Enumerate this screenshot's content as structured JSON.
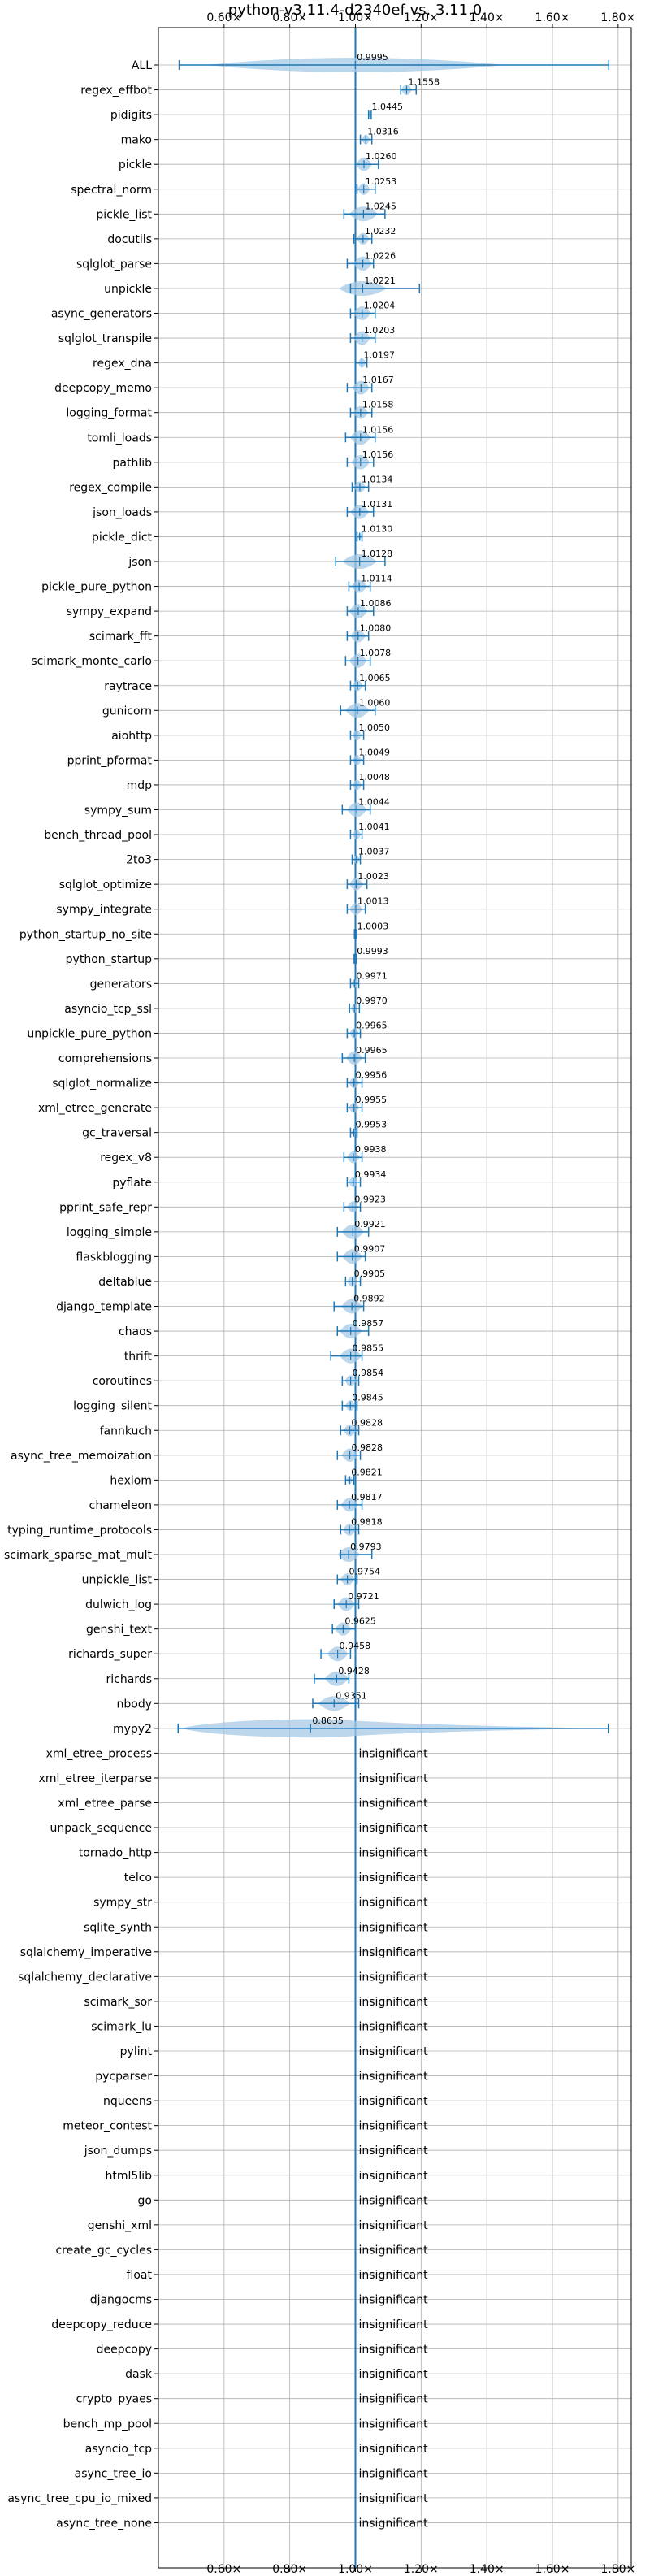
{
  "chart_data": {
    "type": "violin",
    "title": "python-v3.11.4-d2340ef vs. 3.11.0",
    "xlim": [
      0.4,
      1.84
    ],
    "x_ticks": [
      0.6,
      0.8,
      1.0,
      1.2,
      1.4,
      1.6,
      1.8
    ],
    "x_tick_labels": [
      "0.60×",
      "0.80×",
      "1.00×",
      "1.20×",
      "1.40×",
      "1.60×",
      "1.80×"
    ],
    "x_ticks_top": true,
    "grid": true,
    "reference_line": 1.0,
    "colors": {
      "accent": "#1f77b4",
      "violin": "#a6c8e4",
      "grid": "#b0b0b0"
    },
    "insignificant_label": "insignificant",
    "benchmarks": [
      {
        "name": "ALL",
        "value": 0.9995,
        "label": "0.9995",
        "min": 0.4632,
        "max": 1.7714
      },
      {
        "name": "regex_effbot",
        "value": 1.1558,
        "label": "1.1558",
        "min": 1.138,
        "max": 1.185
      },
      {
        "name": "pidigits",
        "value": 1.0445,
        "label": "1.0445",
        "min": 1.04,
        "max": 1.048
      },
      {
        "name": "mako",
        "value": 1.0316,
        "label": "1.0316",
        "min": 1.015,
        "max": 1.05
      },
      {
        "name": "pickle",
        "value": 1.026,
        "label": "1.0260",
        "min": 1.0,
        "max": 1.07
      },
      {
        "name": "spectral_norm",
        "value": 1.0253,
        "label": "1.0253",
        "min": 1.005,
        "max": 1.06
      },
      {
        "name": "pickle_list",
        "value": 1.0245,
        "label": "1.0245",
        "min": 0.965,
        "max": 1.09
      },
      {
        "name": "docutils",
        "value": 1.0232,
        "label": "1.0232",
        "min": 0.995,
        "max": 1.05
      },
      {
        "name": "sqlglot_parse",
        "value": 1.0226,
        "label": "1.0226",
        "min": 0.975,
        "max": 1.055
      },
      {
        "name": "unpickle",
        "value": 1.0221,
        "label": "1.0221",
        "min": 0.985,
        "max": 1.195
      },
      {
        "name": "async_generators",
        "value": 1.0204,
        "label": "1.0204",
        "min": 0.985,
        "max": 1.06
      },
      {
        "name": "sqlglot_transpile",
        "value": 1.0203,
        "label": "1.0203",
        "min": 0.985,
        "max": 1.06
      },
      {
        "name": "regex_dna",
        "value": 1.0197,
        "label": "1.0197",
        "min": 1.0,
        "max": 1.035
      },
      {
        "name": "deepcopy_memo",
        "value": 1.0167,
        "label": "1.0167",
        "min": 0.975,
        "max": 1.05
      },
      {
        "name": "logging_format",
        "value": 1.0158,
        "label": "1.0158",
        "min": 0.985,
        "max": 1.05
      },
      {
        "name": "tomli_loads",
        "value": 1.0156,
        "label": "1.0156",
        "min": 0.97,
        "max": 1.06
      },
      {
        "name": "pathlib",
        "value": 1.0156,
        "label": "1.0156",
        "min": 0.975,
        "max": 1.055
      },
      {
        "name": "regex_compile",
        "value": 1.0134,
        "label": "1.0134",
        "min": 0.99,
        "max": 1.04
      },
      {
        "name": "json_loads",
        "value": 1.0131,
        "label": "1.0131",
        "min": 0.975,
        "max": 1.055
      },
      {
        "name": "pickle_dict",
        "value": 1.013,
        "label": "1.0130",
        "min": 1.005,
        "max": 1.02
      },
      {
        "name": "json",
        "value": 1.0128,
        "label": "1.0128",
        "min": 0.94,
        "max": 1.09
      },
      {
        "name": "pickle_pure_python",
        "value": 1.0114,
        "label": "1.0114",
        "min": 0.98,
        "max": 1.045
      },
      {
        "name": "sympy_expand",
        "value": 1.0086,
        "label": "1.0086",
        "min": 0.975,
        "max": 1.055
      },
      {
        "name": "scimark_fft",
        "value": 1.008,
        "label": "1.0080",
        "min": 0.975,
        "max": 1.04
      },
      {
        "name": "scimark_monte_carlo",
        "value": 1.0078,
        "label": "1.0078",
        "min": 0.97,
        "max": 1.045
      },
      {
        "name": "raytrace",
        "value": 1.0065,
        "label": "1.0065",
        "min": 0.985,
        "max": 1.03
      },
      {
        "name": "gunicorn",
        "value": 1.006,
        "label": "1.0060",
        "min": 0.955,
        "max": 1.06
      },
      {
        "name": "aiohttp",
        "value": 1.005,
        "label": "1.0050",
        "min": 0.985,
        "max": 1.025
      },
      {
        "name": "pprint_pformat",
        "value": 1.0049,
        "label": "1.0049",
        "min": 0.985,
        "max": 1.025
      },
      {
        "name": "mdp",
        "value": 1.0048,
        "label": "1.0048",
        "min": 0.985,
        "max": 1.025
      },
      {
        "name": "sympy_sum",
        "value": 1.0044,
        "label": "1.0044",
        "min": 0.96,
        "max": 1.045
      },
      {
        "name": "bench_thread_pool",
        "value": 1.0041,
        "label": "1.0041",
        "min": 0.985,
        "max": 1.02
      },
      {
        "name": "2to3",
        "value": 1.0037,
        "label": "1.0037",
        "min": 0.99,
        "max": 1.015
      },
      {
        "name": "sqlglot_optimize",
        "value": 1.0023,
        "label": "1.0023",
        "min": 0.975,
        "max": 1.035
      },
      {
        "name": "sympy_integrate",
        "value": 1.0013,
        "label": "1.0013",
        "min": 0.975,
        "max": 1.03
      },
      {
        "name": "python_startup_no_site",
        "value": 1.0003,
        "label": "1.0003",
        "min": 0.997,
        "max": 1.004
      },
      {
        "name": "python_startup",
        "value": 0.9993,
        "label": "0.9993",
        "min": 0.996,
        "max": 1.003
      },
      {
        "name": "generators",
        "value": 0.9971,
        "label": "0.9971",
        "min": 0.985,
        "max": 1.01
      },
      {
        "name": "asyncio_tcp_ssl",
        "value": 0.997,
        "label": "0.9970",
        "min": 0.982,
        "max": 1.012
      },
      {
        "name": "unpickle_pure_python",
        "value": 0.9965,
        "label": "0.9965",
        "min": 0.975,
        "max": 1.015
      },
      {
        "name": "comprehensions",
        "value": 0.9965,
        "label": "0.9965",
        "min": 0.96,
        "max": 1.03
      },
      {
        "name": "sqlglot_normalize",
        "value": 0.9956,
        "label": "0.9956",
        "min": 0.975,
        "max": 1.02
      },
      {
        "name": "xml_etree_generate",
        "value": 0.9955,
        "label": "0.9955",
        "min": 0.975,
        "max": 1.02
      },
      {
        "name": "gc_traversal",
        "value": 0.9953,
        "label": "0.9953",
        "min": 0.985,
        "max": 1.005
      },
      {
        "name": "regex_v8",
        "value": 0.9938,
        "label": "0.9938",
        "min": 0.965,
        "max": 1.02
      },
      {
        "name": "pyflate",
        "value": 0.9934,
        "label": "0.9934",
        "min": 0.975,
        "max": 1.015
      },
      {
        "name": "pprint_safe_repr",
        "value": 0.9923,
        "label": "0.9923",
        "min": 0.965,
        "max": 1.015
      },
      {
        "name": "logging_simple",
        "value": 0.9921,
        "label": "0.9921",
        "min": 0.945,
        "max": 1.04
      },
      {
        "name": "flaskblogging",
        "value": 0.9907,
        "label": "0.9907",
        "min": 0.945,
        "max": 1.03
      },
      {
        "name": "deltablue",
        "value": 0.9905,
        "label": "0.9905",
        "min": 0.97,
        "max": 1.015
      },
      {
        "name": "django_template",
        "value": 0.9892,
        "label": "0.9892",
        "min": 0.935,
        "max": 1.025
      },
      {
        "name": "chaos",
        "value": 0.9857,
        "label": "0.9857",
        "min": 0.945,
        "max": 1.04
      },
      {
        "name": "thrift",
        "value": 0.9855,
        "label": "0.9855",
        "min": 0.925,
        "max": 1.02
      },
      {
        "name": "coroutines",
        "value": 0.9854,
        "label": "0.9854",
        "min": 0.96,
        "max": 1.01
      },
      {
        "name": "logging_silent",
        "value": 0.9845,
        "label": "0.9845",
        "min": 0.96,
        "max": 1.005
      },
      {
        "name": "fannkuch",
        "value": 0.9828,
        "label": "0.9828",
        "min": 0.955,
        "max": 1.01
      },
      {
        "name": "async_tree_memoization",
        "value": 0.9828,
        "label": "0.9828",
        "min": 0.945,
        "max": 1.015
      },
      {
        "name": "hexiom",
        "value": 0.9821,
        "label": "0.9821",
        "min": 0.97,
        "max": 0.995
      },
      {
        "name": "chameleon",
        "value": 0.9817,
        "label": "0.9817",
        "min": 0.945,
        "max": 1.02
      },
      {
        "name": "typing_runtime_protocols",
        "value": 0.9818,
        "label": "0.9818",
        "min": 0.955,
        "max": 1.01
      },
      {
        "name": "scimark_sparse_mat_mult",
        "value": 0.9793,
        "label": "0.9793",
        "min": 0.955,
        "max": 1.05
      },
      {
        "name": "unpickle_list",
        "value": 0.9754,
        "label": "0.9754",
        "min": 0.945,
        "max": 1.005
      },
      {
        "name": "dulwich_log",
        "value": 0.9721,
        "label": "0.9721",
        "min": 0.935,
        "max": 1.01
      },
      {
        "name": "genshi_text",
        "value": 0.9625,
        "label": "0.9625",
        "min": 0.93,
        "max": 1.0
      },
      {
        "name": "richards_super",
        "value": 0.9458,
        "label": "0.9458",
        "min": 0.895,
        "max": 0.985
      },
      {
        "name": "richards",
        "value": 0.9428,
        "label": "0.9428",
        "min": 0.875,
        "max": 0.98
      },
      {
        "name": "nbody",
        "value": 0.9351,
        "label": "0.9351",
        "min": 0.87,
        "max": 1.01
      },
      {
        "name": "mypy2",
        "value": 0.8635,
        "label": "0.8635",
        "min": 0.46,
        "max": 1.77
      },
      {
        "name": "xml_etree_process",
        "insignificant": true
      },
      {
        "name": "xml_etree_iterparse",
        "insignificant": true
      },
      {
        "name": "xml_etree_parse",
        "insignificant": true
      },
      {
        "name": "unpack_sequence",
        "insignificant": true
      },
      {
        "name": "tornado_http",
        "insignificant": true
      },
      {
        "name": "telco",
        "insignificant": true
      },
      {
        "name": "sympy_str",
        "insignificant": true
      },
      {
        "name": "sqlite_synth",
        "insignificant": true
      },
      {
        "name": "sqlalchemy_imperative",
        "insignificant": true
      },
      {
        "name": "sqlalchemy_declarative",
        "insignificant": true
      },
      {
        "name": "scimark_sor",
        "insignificant": true
      },
      {
        "name": "scimark_lu",
        "insignificant": true
      },
      {
        "name": "pylint",
        "insignificant": true
      },
      {
        "name": "pycparser",
        "insignificant": true
      },
      {
        "name": "nqueens",
        "insignificant": true
      },
      {
        "name": "meteor_contest",
        "insignificant": true
      },
      {
        "name": "json_dumps",
        "insignificant": true
      },
      {
        "name": "html5lib",
        "insignificant": true
      },
      {
        "name": "go",
        "insignificant": true
      },
      {
        "name": "genshi_xml",
        "insignificant": true
      },
      {
        "name": "create_gc_cycles",
        "insignificant": true
      },
      {
        "name": "float",
        "insignificant": true
      },
      {
        "name": "djangocms",
        "insignificant": true
      },
      {
        "name": "deepcopy_reduce",
        "insignificant": true
      },
      {
        "name": "deepcopy",
        "insignificant": true
      },
      {
        "name": "dask",
        "insignificant": true
      },
      {
        "name": "crypto_pyaes",
        "insignificant": true
      },
      {
        "name": "bench_mp_pool",
        "insignificant": true
      },
      {
        "name": "asyncio_tcp",
        "insignificant": true
      },
      {
        "name": "async_tree_io",
        "insignificant": true
      },
      {
        "name": "async_tree_cpu_io_mixed",
        "insignificant": true
      },
      {
        "name": "async_tree_none",
        "insignificant": true
      }
    ]
  }
}
